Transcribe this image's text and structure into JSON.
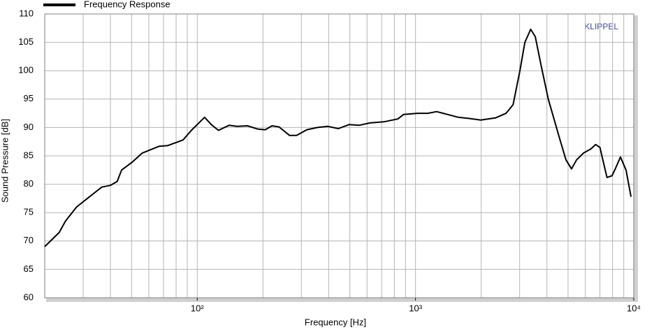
{
  "chart_data": {
    "type": "line",
    "legend_label": "Frequency Response",
    "watermark": "KLIPPEL",
    "xlabel": "Frequency  [Hz]",
    "ylabel": "Sound Pressure  [dB]",
    "xscale": "log",
    "grid": true,
    "xlim": [
      20,
      10000
    ],
    "ylim": [
      60,
      110
    ],
    "xticks": [
      {
        "value": 100,
        "label": "10²"
      },
      {
        "value": 1000,
        "label": "10³"
      },
      {
        "value": 10000,
        "label": "10⁴"
      }
    ],
    "xgrid": [
      20,
      30,
      40,
      50,
      60,
      70,
      80,
      90,
      100,
      200,
      300,
      400,
      500,
      600,
      700,
      800,
      900,
      1000,
      2000,
      3000,
      4000,
      5000,
      6000,
      7000,
      8000,
      9000
    ],
    "yticks": [
      60,
      65,
      70,
      75,
      80,
      85,
      90,
      95,
      100,
      105,
      110
    ],
    "series": [
      {
        "name": "Frequency Response",
        "color": "#000000",
        "x": [
          20,
          23.3,
          24.9,
          28,
          36.5,
          40,
          43,
          45,
          50,
          56,
          67,
          73,
          86,
          94,
          108,
          116,
          125,
          140,
          152,
          170,
          190,
          205,
          220,
          237,
          265,
          285,
          318,
          355,
          397,
          443,
          496,
          553,
          618,
          716,
          830,
          882,
          1022,
          1140,
          1250,
          1400,
          1570,
          1750,
          1990,
          2330,
          2600,
          2800,
          3010,
          3170,
          3370,
          3540,
          3760,
          4060,
          4540,
          4890,
          5190,
          5470,
          5890,
          6350,
          6690,
          7000,
          7200,
          7540,
          7950,
          8250,
          8690,
          9220,
          9720
        ],
        "values": [
          69.0,
          71.5,
          73.5,
          76.0,
          79.5,
          79.8,
          80.5,
          82.5,
          83.8,
          85.5,
          86.7,
          86.8,
          87.8,
          89.5,
          91.8,
          90.5,
          89.5,
          90.4,
          90.2,
          90.3,
          89.7,
          89.6,
          90.3,
          90.1,
          88.6,
          88.6,
          89.6,
          90.0,
          90.2,
          89.8,
          90.5,
          90.4,
          90.8,
          91.0,
          91.5,
          92.3,
          92.5,
          92.5,
          92.8,
          92.3,
          91.8,
          91.6,
          91.3,
          91.7,
          92.5,
          94.0,
          100.0,
          105.0,
          107.3,
          106.0,
          101.0,
          95.0,
          88.5,
          84.3,
          82.7,
          84.3,
          85.5,
          86.2,
          87.0,
          86.5,
          84.5,
          81.2,
          81.5,
          82.8,
          84.8,
          82.5,
          77.8
        ]
      }
    ]
  }
}
